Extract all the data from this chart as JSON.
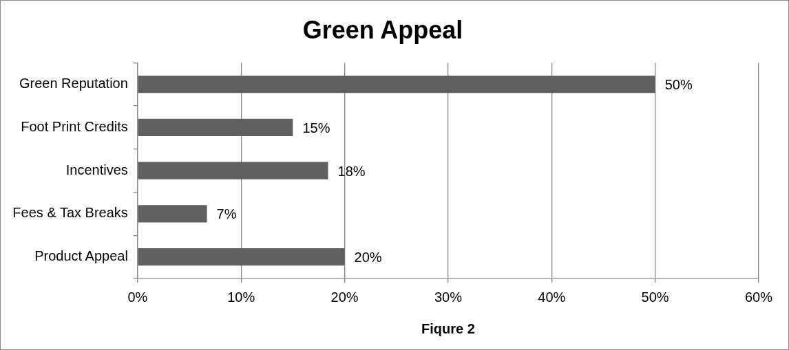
{
  "chart_data": {
    "type": "bar",
    "title": "Green Appeal",
    "xlabel": "Fiqure 2",
    "orientation": "horizontal",
    "categories": [
      "Green Reputation",
      "Foot Print Credits",
      "Incentives",
      "Fees & Tax Breaks",
      "Product Appeal"
    ],
    "values": [
      50,
      15,
      18.4,
      6.7,
      20
    ],
    "value_labels": [
      "50%",
      "15%",
      "18%",
      "7%",
      "20%"
    ],
    "color": "#606060",
    "xlim": [
      0,
      60
    ],
    "xticks": [
      {
        "value": 0,
        "label": "0%"
      },
      {
        "value": 10,
        "label": "10%"
      },
      {
        "value": 20,
        "label": "20%"
      },
      {
        "value": 30,
        "label": "30%"
      },
      {
        "value": 40,
        "label": "40%"
      },
      {
        "value": 50,
        "label": "50%"
      },
      {
        "value": 60,
        "label": "60%"
      }
    ],
    "grid": "x",
    "legend": false
  }
}
